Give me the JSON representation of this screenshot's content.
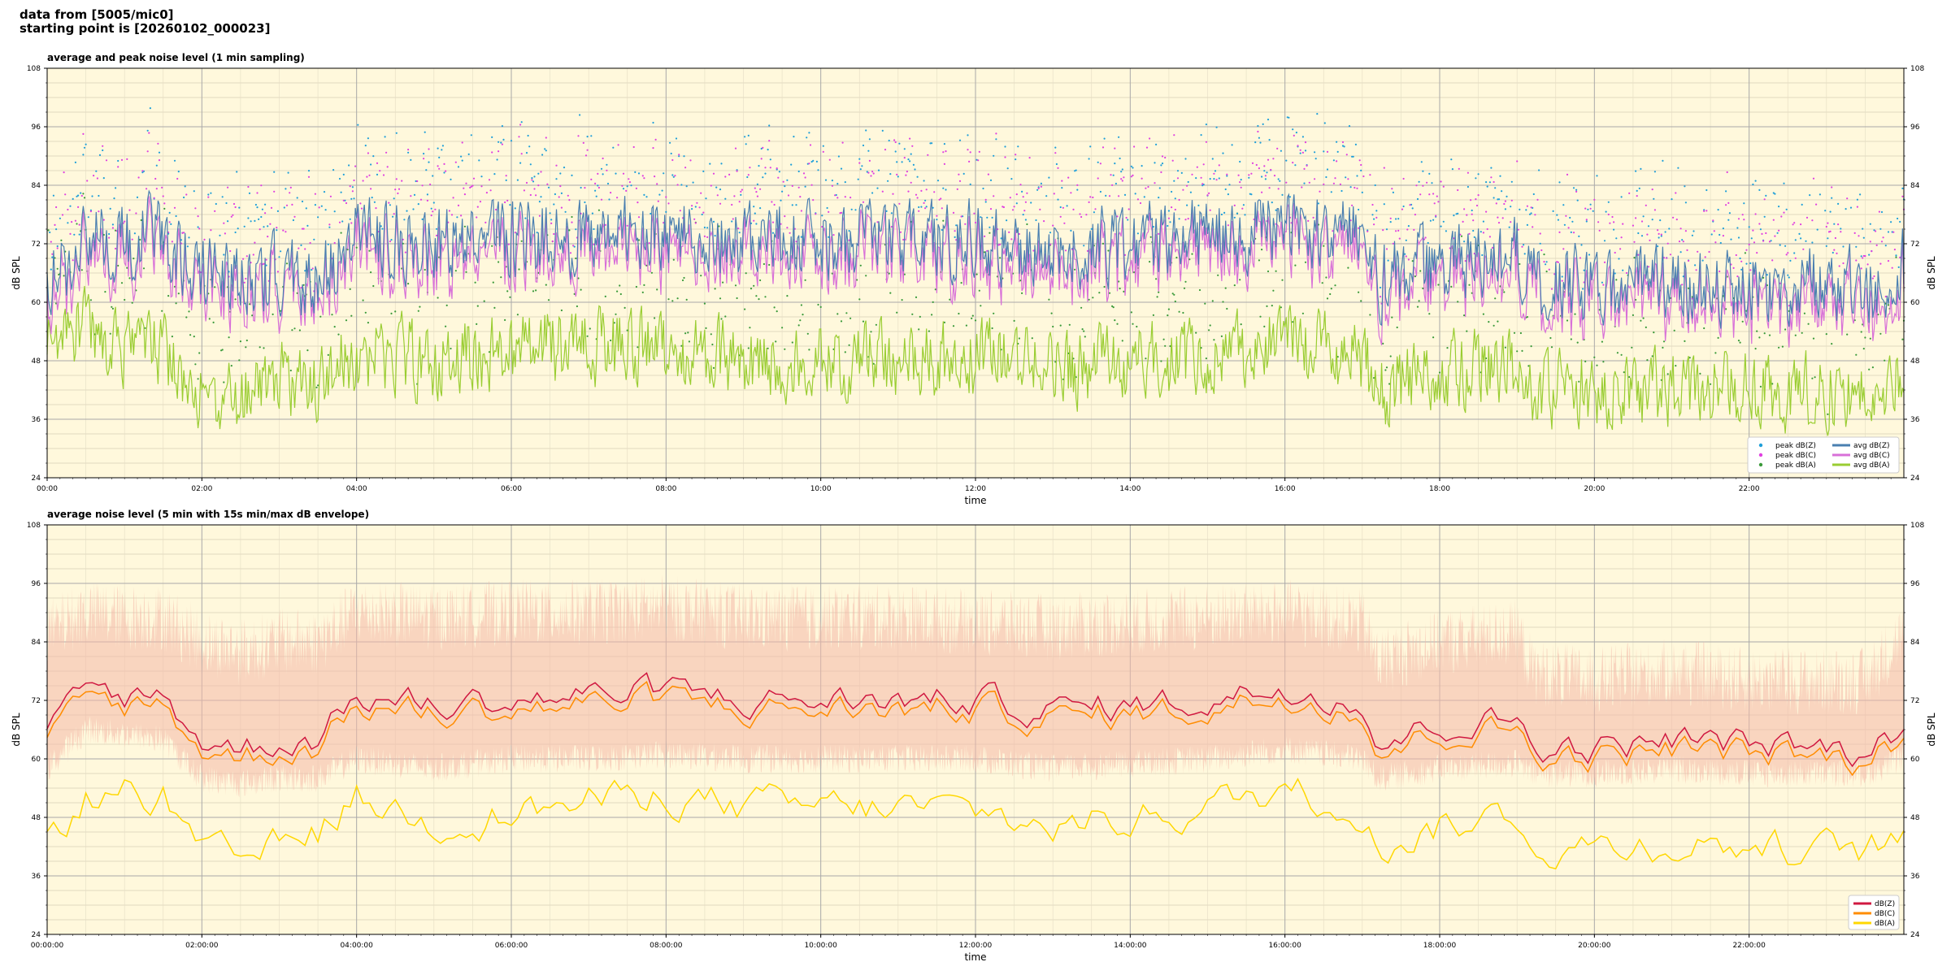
{
  "header": {
    "line1": "data from [5005/mic0]",
    "line2": "starting point is [20260102_000023]"
  },
  "colors": {
    "plot_bg": "#fff8dc",
    "peak_z": "#1f9fd9",
    "peak_c": "#e040e0",
    "peak_a": "#3a9a3a",
    "avg_z": "#4a7fb0",
    "avg_c": "#d870d8",
    "avg_a": "#9acd32",
    "db_z": "#d01840",
    "db_c": "#ff8c00",
    "db_a": "#ffd700",
    "envelope": "#f4b8a8"
  },
  "chart_data": [
    {
      "type": "scatter+line",
      "title": "average and peak noise level (1 min sampling)",
      "xlabel": "time",
      "ylabel": "dB SPL",
      "ylabel_right": "dB SPL",
      "ylim": [
        24,
        108
      ],
      "yticks": [
        "24",
        "36",
        "48",
        "60",
        "72",
        "84",
        "96",
        "108"
      ],
      "xlim_hours": [
        0,
        24
      ],
      "xticks": [
        "00:00",
        "02:00",
        "04:00",
        "06:00",
        "08:00",
        "10:00",
        "12:00",
        "14:00",
        "16:00",
        "18:00",
        "20:00",
        "22:00"
      ],
      "grid": true,
      "legend_position": "bottom-right",
      "legend": [
        "peak dB(Z)",
        "peak dB(C)",
        "peak dB(A)",
        "avg dB(Z)",
        "avg dB(C)",
        "avg dB(A)"
      ],
      "series_baselines": {
        "hours": [
          0,
          0.5,
          1,
          1.5,
          2,
          2.5,
          3,
          3.5,
          4,
          5,
          6,
          7,
          8,
          9,
          10,
          11,
          12,
          13,
          14,
          15,
          16,
          17,
          17.2,
          18,
          19,
          19.2,
          20,
          21,
          22,
          23,
          23.5,
          24
        ],
        "avg_z": [
          64,
          72,
          73,
          74,
          66,
          65,
          66,
          64,
          74,
          72,
          73,
          74,
          75,
          72,
          73,
          72,
          73,
          70,
          72,
          74,
          75,
          73,
          65,
          68,
          70,
          64,
          63,
          64,
          64,
          64,
          63,
          68
        ],
        "avg_a": [
          52,
          54,
          50,
          50,
          42,
          40,
          44,
          44,
          50,
          48,
          50,
          51,
          50,
          48,
          49,
          48,
          49,
          46,
          48,
          49,
          52,
          48,
          42,
          45,
          48,
          42,
          42,
          42,
          42,
          42,
          41,
          44
        ]
      }
    },
    {
      "type": "line+area",
      "title": "average noise level (5 min with 15s min/max dB envelope)",
      "xlabel": "time",
      "ylabel": "dB SPL",
      "ylabel_right": "dB SPL",
      "ylim": [
        24,
        108
      ],
      "yticks": [
        "24",
        "36",
        "48",
        "60",
        "72",
        "84",
        "96",
        "108"
      ],
      "xlim_hours": [
        0,
        24
      ],
      "xticks": [
        "00:00:00",
        "02:00:00",
        "04:00:00",
        "06:00:00",
        "08:00:00",
        "10:00:00",
        "12:00:00",
        "14:00:00",
        "16:00:00",
        "18:00:00",
        "20:00:00",
        "22:00:00"
      ],
      "grid": true,
      "legend_position": "bottom-right",
      "legend": [
        "dB(Z)",
        "dB(C)",
        "dB(A)"
      ],
      "series_baselines": {
        "hours": [
          0,
          0.5,
          1,
          1.5,
          2,
          2.5,
          3,
          3.5,
          4,
          5,
          6,
          7,
          8,
          9,
          10,
          11,
          12,
          13,
          14,
          15,
          16,
          17,
          17.2,
          18,
          19,
          19.2,
          20,
          21,
          22,
          23,
          23.5,
          24
        ],
        "db_z": [
          64,
          74,
          73,
          73,
          64,
          62,
          64,
          64,
          73,
          71,
          72,
          73,
          74,
          72,
          72,
          72,
          72,
          70,
          71,
          72,
          75,
          72,
          63,
          67,
          68,
          63,
          62,
          64,
          63,
          62,
          61,
          67
        ],
        "db_a": [
          44,
          52,
          53,
          52,
          40,
          39,
          42,
          45,
          52,
          47,
          49,
          51,
          53,
          50,
          50,
          50,
          49,
          46,
          48,
          50,
          54,
          50,
          42,
          46,
          49,
          42,
          42,
          43,
          42,
          41,
          41,
          44
        ],
        "envelope_low": [
          58,
          66,
          65,
          64,
          56,
          55,
          56,
          56,
          60,
          58,
          60,
          60,
          61,
          60,
          60,
          60,
          60,
          58,
          59,
          60,
          62,
          60,
          56,
          58,
          59,
          57,
          57,
          58,
          57,
          57,
          57,
          60
        ],
        "envelope_high": [
          86,
          90,
          89,
          89,
          84,
          82,
          84,
          84,
          90,
          89,
          90,
          90,
          91,
          89,
          89,
          89,
          88,
          87,
          88,
          89,
          90,
          88,
          80,
          84,
          86,
          78,
          76,
          78,
          76,
          76,
          76,
          86
        ]
      }
    }
  ]
}
